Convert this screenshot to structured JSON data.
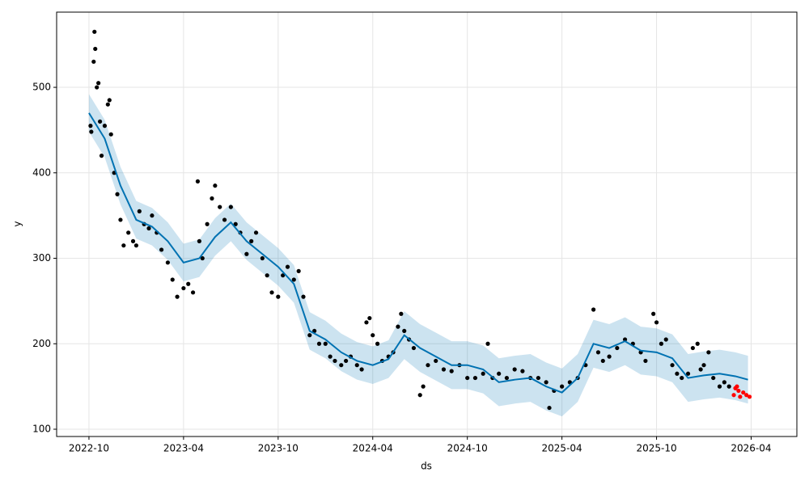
{
  "chart_data": {
    "type": "forecast",
    "x_label": "ds",
    "y_label": "y",
    "xlim": [
      -2.05,
      44.9
    ],
    "ylim": [
      91.5,
      588
    ],
    "xticks": [
      {
        "value": 0,
        "label": "2022-10"
      },
      {
        "value": 6,
        "label": "2023-04"
      },
      {
        "value": 12,
        "label": "2023-10"
      },
      {
        "value": 18,
        "label": "2024-04"
      },
      {
        "value": 24,
        "label": "2024-10"
      },
      {
        "value": 30,
        "label": "2025-04"
      },
      {
        "value": 36,
        "label": "2025-10"
      },
      {
        "value": 42,
        "label": "2026-04"
      }
    ],
    "yticks": [
      100,
      200,
      300,
      400,
      500
    ],
    "grid": true,
    "forecast": {
      "color": "#0072b2",
      "band_color": "#0072b2",
      "x": [
        0,
        1,
        2,
        3,
        4,
        5,
        6,
        7,
        8,
        9,
        10,
        11,
        12,
        13,
        14,
        15,
        16,
        17,
        18,
        19,
        20,
        21,
        22,
        23,
        24,
        25,
        26,
        27,
        28,
        29,
        30,
        31,
        32,
        33,
        34,
        35,
        36,
        37,
        38,
        39,
        40,
        41,
        41.8
      ],
      "values": [
        470,
        440,
        385,
        345,
        337,
        320,
        295,
        300,
        325,
        342,
        320,
        305,
        290,
        270,
        215,
        205,
        190,
        180,
        175,
        182,
        210,
        195,
        185,
        175,
        175,
        170,
        155,
        158,
        160,
        150,
        143,
        160,
        200,
        195,
        203,
        192,
        190,
        183,
        160,
        163,
        165,
        162,
        158
      ],
      "upper": [
        492,
        462,
        407,
        367,
        359,
        342,
        317,
        322,
        347,
        364,
        342,
        327,
        312,
        292,
        237,
        227,
        212,
        202,
        197,
        204,
        238,
        223,
        213,
        203,
        203,
        198,
        183,
        186,
        188,
        178,
        171,
        188,
        228,
        223,
        231,
        220,
        218,
        211,
        188,
        191,
        193,
        190,
        186
      ],
      "lower": [
        448,
        418,
        363,
        323,
        315,
        298,
        273,
        278,
        303,
        320,
        298,
        283,
        268,
        248,
        193,
        183,
        168,
        158,
        153,
        160,
        182,
        167,
        157,
        147,
        147,
        142,
        127,
        130,
        132,
        122,
        115,
        132,
        172,
        167,
        175,
        164,
        162,
        155,
        132,
        135,
        137,
        134,
        130
      ]
    },
    "observed": {
      "color": "#000000",
      "x": [
        0.1,
        0.15,
        0.3,
        0.35,
        0.4,
        0.5,
        0.6,
        0.7,
        0.8,
        1.0,
        1.2,
        1.3,
        1.4,
        1.6,
        1.8,
        2.0,
        2.2,
        2.5,
        2.8,
        3.0,
        3.2,
        3.5,
        3.8,
        4.0,
        4.3,
        4.6,
        5.0,
        5.3,
        5.6,
        6.0,
        6.3,
        6.6,
        6.9,
        7.0,
        7.2,
        7.5,
        7.8,
        8.0,
        8.3,
        8.6,
        9.0,
        9.3,
        9.6,
        10.0,
        10.3,
        10.6,
        11.0,
        11.3,
        11.6,
        12.0,
        12.3,
        12.6,
        13.0,
        13.3,
        13.6,
        14.0,
        14.3,
        14.6,
        15.0,
        15.3,
        15.6,
        16.0,
        16.3,
        16.6,
        17.0,
        17.3,
        17.6,
        17.8,
        18.0,
        18.3,
        18.6,
        19.0,
        19.3,
        19.6,
        19.8,
        20.0,
        20.3,
        20.6,
        21.0,
        21.2,
        21.5,
        22.0,
        22.5,
        23.0,
        23.5,
        24.0,
        24.5,
        25.0,
        25.3,
        25.6,
        26.0,
        26.5,
        27.0,
        27.5,
        28.0,
        28.5,
        29.0,
        29.2,
        29.5,
        30.0,
        30.5,
        31.0,
        31.5,
        32.0,
        32.3,
        32.6,
        33.0,
        33.5,
        34.0,
        34.5,
        35.0,
        35.3,
        35.8,
        36.0,
        36.3,
        36.6,
        37.0,
        37.3,
        37.6,
        38.0,
        38.3,
        38.6,
        38.8,
        39.0,
        39.3,
        39.6,
        40.0,
        40.3,
        40.6
      ],
      "y": [
        455,
        448,
        530,
        565,
        545,
        500,
        505,
        460,
        420,
        455,
        480,
        485,
        445,
        400,
        375,
        345,
        315,
        330,
        320,
        315,
        355,
        340,
        335,
        350,
        330,
        310,
        295,
        275,
        255,
        265,
        270,
        260,
        390,
        320,
        300,
        340,
        370,
        385,
        360,
        345,
        360,
        340,
        330,
        305,
        320,
        330,
        300,
        280,
        260,
        255,
        280,
        290,
        275,
        285,
        255,
        210,
        215,
        200,
        200,
        185,
        180,
        175,
        180,
        185,
        175,
        170,
        225,
        230,
        210,
        200,
        180,
        185,
        190,
        220,
        235,
        215,
        205,
        195,
        140,
        150,
        175,
        180,
        170,
        168,
        175,
        160,
        160,
        165,
        200,
        160,
        165,
        160,
        170,
        168,
        160,
        160,
        155,
        125,
        145,
        150,
        155,
        160,
        175,
        240,
        190,
        180,
        185,
        195,
        205,
        200,
        190,
        180,
        235,
        225,
        200,
        205,
        175,
        165,
        160,
        165,
        195,
        200,
        170,
        175,
        190,
        160,
        150,
        155,
        150
      ]
    },
    "holdout": {
      "color": "#ff0000",
      "x": [
        40.9,
        41.0,
        41.1,
        41.2,
        41.3,
        41.5,
        41.7,
        41.9
      ],
      "y": [
        140,
        148,
        150,
        145,
        138,
        143,
        140,
        138
      ]
    }
  }
}
